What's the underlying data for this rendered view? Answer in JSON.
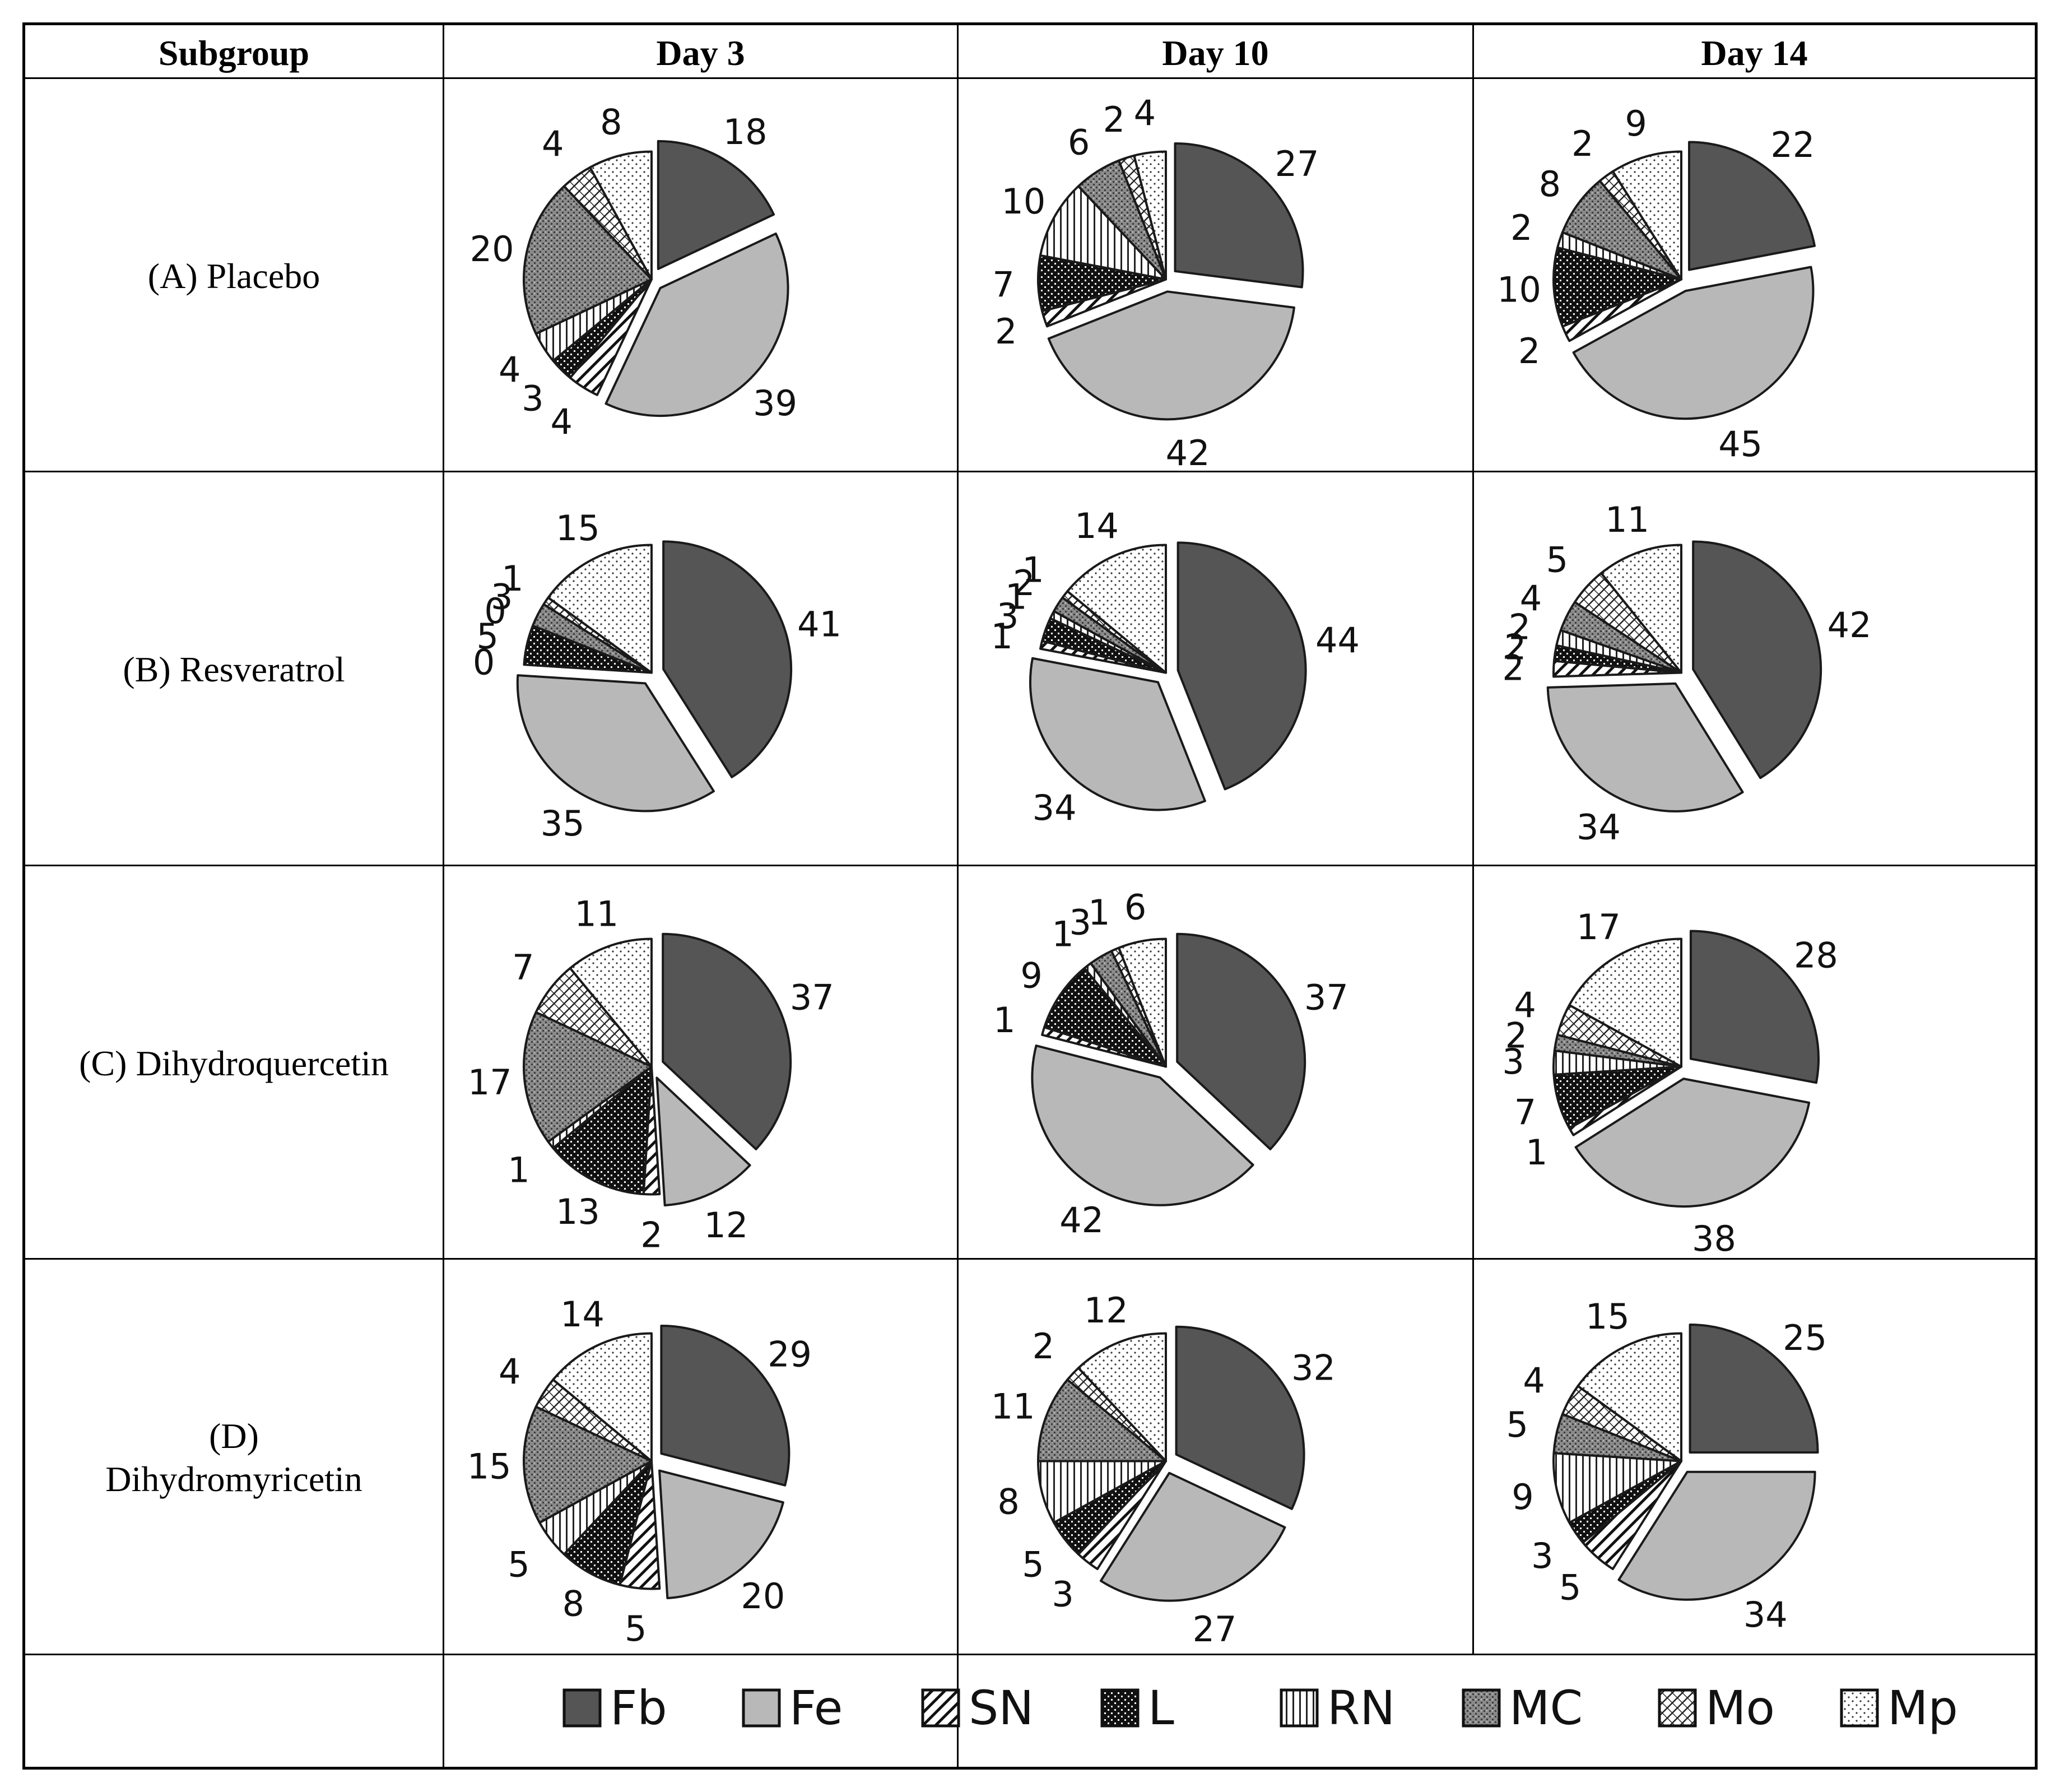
{
  "table": {
    "headers": [
      "Subgroup",
      "Day 3",
      "Day 10",
      "Day 14"
    ],
    "rows": [
      {
        "label": "(A) Placebo"
      },
      {
        "label": "(B) Resveratrol"
      },
      {
        "label": "(C) Dihydroquercetin"
      },
      {
        "label": "(D)\nDihydromyricetin"
      }
    ]
  },
  "legend": [
    {
      "key": "Fb",
      "label": "Fb"
    },
    {
      "key": "Fe",
      "label": "Fe"
    },
    {
      "key": "SN",
      "label": "SN"
    },
    {
      "key": "L",
      "label": "L"
    },
    {
      "key": "RN",
      "label": "RN"
    },
    {
      "key": "MC",
      "label": "MC"
    },
    {
      "key": "Mo",
      "label": "Mo"
    },
    {
      "key": "Mp",
      "label": "Mp"
    }
  ],
  "colors": {
    "Fb": "#555555",
    "Fe": "#b8b8b8",
    "dark": "#111111",
    "outline": "#1a1a1a"
  },
  "chart_data": [
    {
      "type": "pie",
      "subgroup": "(A) Placebo",
      "day": "Day 3",
      "categories": [
        "Fb",
        "Fe",
        "SN",
        "L",
        "RN",
        "MC",
        "Mo",
        "Mp"
      ],
      "values": [
        18,
        39,
        4,
        3,
        4,
        20,
        4,
        8
      ],
      "exploded": [
        "Fb",
        "Fe"
      ]
    },
    {
      "type": "pie",
      "subgroup": "(A) Placebo",
      "day": "Day 10",
      "categories": [
        "Fb",
        "Fe",
        "SN",
        "L",
        "RN",
        "MC",
        "Mo",
        "Mp"
      ],
      "values": [
        27,
        42,
        2,
        7,
        10,
        6,
        2,
        4
      ],
      "exploded": [
        "Fb",
        "Fe"
      ]
    },
    {
      "type": "pie",
      "subgroup": "(A) Placebo",
      "day": "Day 14",
      "categories": [
        "Fb",
        "Fe",
        "SN",
        "L",
        "RN",
        "MC",
        "Mo",
        "Mp"
      ],
      "values": [
        22,
        45,
        2,
        10,
        2,
        8,
        2,
        9
      ],
      "exploded": [
        "Fb",
        "Fe"
      ]
    },
    {
      "type": "pie",
      "subgroup": "(B) Resveratrol",
      "day": "Day 3",
      "categories": [
        "Fb",
        "Fe",
        "SN",
        "L",
        "RN",
        "MC",
        "Mo",
        "Mp"
      ],
      "values": [
        41,
        35,
        0,
        5,
        0,
        3,
        1,
        15
      ],
      "exploded": [
        "Fb",
        "Fe"
      ]
    },
    {
      "type": "pie",
      "subgroup": "(B) Resveratrol",
      "day": "Day 10",
      "categories": [
        "Fb",
        "Fe",
        "SN",
        "L",
        "RN",
        "MC",
        "Mo",
        "Mp"
      ],
      "values": [
        44,
        34,
        1,
        3,
        1,
        2,
        1,
        14
      ],
      "exploded": [
        "Fb",
        "Fe"
      ]
    },
    {
      "type": "pie",
      "subgroup": "(B) Resveratrol",
      "day": "Day 14",
      "categories": [
        "Fb",
        "Fe",
        "SN",
        "L",
        "RN",
        "MC",
        "Mo",
        "Mp"
      ],
      "values": [
        42,
        34,
        2,
        2,
        2,
        4,
        5,
        11
      ],
      "exploded": [
        "Fb",
        "Fe"
      ]
    },
    {
      "type": "pie",
      "subgroup": "(C) Dihydroquercetin",
      "day": "Day 3",
      "categories": [
        "Fb",
        "Fe",
        "SN",
        "L",
        "RN",
        "MC",
        "Mo",
        "Mp"
      ],
      "values": [
        37,
        12,
        2,
        13,
        1,
        17,
        7,
        11
      ],
      "exploded": [
        "Fb",
        "Fe"
      ]
    },
    {
      "type": "pie",
      "subgroup": "(C) Dihydroquercetin",
      "day": "Day 10",
      "categories": [
        "Fb",
        "Fe",
        "SN",
        "L",
        "RN",
        "MC",
        "Mo",
        "Mp"
      ],
      "values": [
        37,
        42,
        1,
        9,
        1,
        3,
        1,
        6
      ],
      "exploded": [
        "Fb",
        "Fe"
      ]
    },
    {
      "type": "pie",
      "subgroup": "(C) Dihydroquercetin",
      "day": "Day 14",
      "categories": [
        "Fb",
        "Fe",
        "SN",
        "L",
        "RN",
        "MC",
        "Mo",
        "Mp"
      ],
      "values": [
        28,
        38,
        1,
        7,
        3,
        2,
        4,
        17
      ],
      "exploded": [
        "Fb",
        "Fe"
      ]
    },
    {
      "type": "pie",
      "subgroup": "(D) Dihydromyricetin",
      "day": "Day 3",
      "categories": [
        "Fb",
        "Fe",
        "SN",
        "L",
        "RN",
        "MC",
        "Mo",
        "Mp"
      ],
      "values": [
        29,
        20,
        5,
        8,
        5,
        15,
        4,
        14
      ],
      "exploded": [
        "Fb",
        "Fe"
      ]
    },
    {
      "type": "pie",
      "subgroup": "(D) Dihydromyricetin",
      "day": "Day 10",
      "categories": [
        "Fb",
        "Fe",
        "SN",
        "L",
        "RN",
        "MC",
        "Mo",
        "Mp"
      ],
      "values": [
        32,
        27,
        3,
        5,
        8,
        11,
        2,
        12
      ],
      "exploded": [
        "Fb",
        "Fe"
      ]
    },
    {
      "type": "pie",
      "subgroup": "(D) Dihydromyricetin",
      "day": "Day 14",
      "categories": [
        "Fb",
        "Fe",
        "SN",
        "L",
        "RN",
        "MC",
        "Mo",
        "Mp"
      ],
      "values": [
        25,
        34,
        5,
        3,
        9,
        5,
        4,
        15
      ],
      "exploded": [
        "Fb",
        "Fe"
      ]
    }
  ]
}
